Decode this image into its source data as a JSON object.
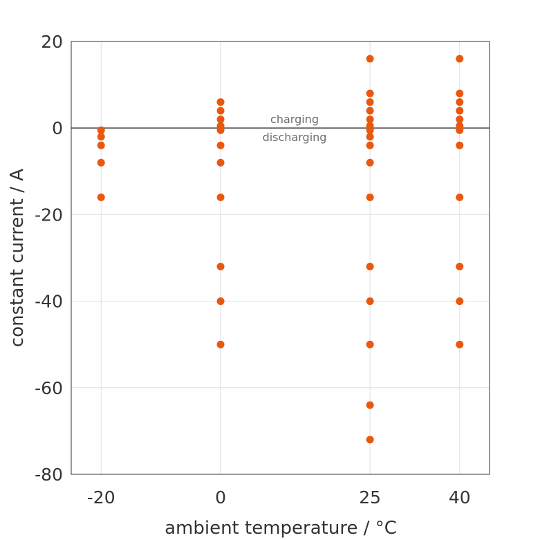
{
  "chart_data": {
    "type": "scatter",
    "xlabel": "ambient temperature / °C",
    "ylabel": "constant current / A",
    "x_ticks": [
      -20,
      0,
      25,
      40
    ],
    "y_ticks": [
      20,
      0,
      -20,
      -40,
      -60,
      -80
    ],
    "xlim": [
      -25,
      45
    ],
    "ylim": [
      -80,
      20
    ],
    "grid": true,
    "marker_color": "#E8580F",
    "reference_line": {
      "y": 0,
      "color": "#666666"
    },
    "annotations": {
      "above": "charging",
      "below": "discharging"
    },
    "series": [
      {
        "points": [
          {
            "x": -20,
            "y": -0.5
          },
          {
            "x": -20,
            "y": -2
          },
          {
            "x": -20,
            "y": -4
          },
          {
            "x": -20,
            "y": -8
          },
          {
            "x": -20,
            "y": -16
          },
          {
            "x": 0,
            "y": 6
          },
          {
            "x": 0,
            "y": 4
          },
          {
            "x": 0,
            "y": 2
          },
          {
            "x": 0,
            "y": 0.5
          },
          {
            "x": 0,
            "y": -0.5
          },
          {
            "x": 0,
            "y": -4
          },
          {
            "x": 0,
            "y": -8
          },
          {
            "x": 0,
            "y": -16
          },
          {
            "x": 0,
            "y": -32
          },
          {
            "x": 0,
            "y": -40
          },
          {
            "x": 0,
            "y": -50
          },
          {
            "x": 25,
            "y": 16
          },
          {
            "x": 25,
            "y": 8
          },
          {
            "x": 25,
            "y": 6
          },
          {
            "x": 25,
            "y": 4
          },
          {
            "x": 25,
            "y": 2
          },
          {
            "x": 25,
            "y": 0.5
          },
          {
            "x": 25,
            "y": -0.5
          },
          {
            "x": 25,
            "y": -2
          },
          {
            "x": 25,
            "y": -4
          },
          {
            "x": 25,
            "y": -8
          },
          {
            "x": 25,
            "y": -16
          },
          {
            "x": 25,
            "y": -32
          },
          {
            "x": 25,
            "y": -40
          },
          {
            "x": 25,
            "y": -50
          },
          {
            "x": 25,
            "y": -64
          },
          {
            "x": 25,
            "y": -72
          },
          {
            "x": 40,
            "y": 16
          },
          {
            "x": 40,
            "y": 8
          },
          {
            "x": 40,
            "y": 6
          },
          {
            "x": 40,
            "y": 4
          },
          {
            "x": 40,
            "y": 2
          },
          {
            "x": 40,
            "y": 0.5
          },
          {
            "x": 40,
            "y": -0.5
          },
          {
            "x": 40,
            "y": -4
          },
          {
            "x": 40,
            "y": -16
          },
          {
            "x": 40,
            "y": -32
          },
          {
            "x": 40,
            "y": -40
          },
          {
            "x": 40,
            "y": -50
          }
        ]
      }
    ]
  }
}
